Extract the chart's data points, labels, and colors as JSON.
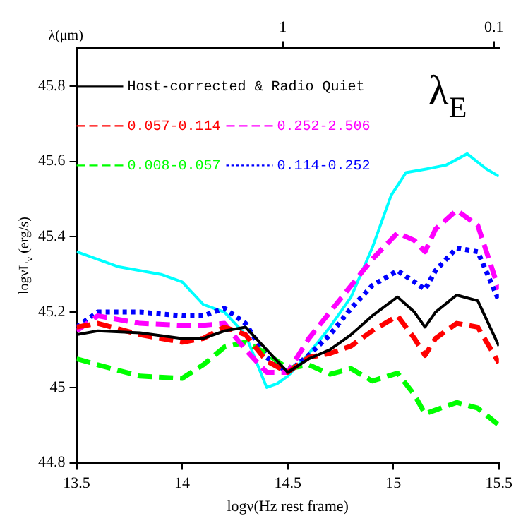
{
  "chart_data": {
    "type": "line",
    "xlabel": "logν(Hz rest frame)",
    "ylabel": "logνL$_{ν}$ (erg/s)",
    "x2label": "λ(μm)",
    "annotations": [
      "λ$_{E}$"
    ],
    "x": [
      13.5,
      13.6,
      13.8,
      14.0,
      14.1,
      14.2,
      14.3,
      14.4,
      14.5,
      14.6,
      14.7,
      14.8,
      14.9,
      15.02,
      15.1,
      15.15,
      15.2,
      15.3,
      15.4,
      15.5
    ],
    "xlim": [
      13.5,
      15.5
    ],
    "xticks": [
      13.5,
      14,
      14.5,
      15,
      15.5
    ],
    "x2lim": [
      9.48,
      0.0948
    ],
    "x2ticks": [
      1,
      0.1
    ],
    "log": "x2",
    "ylim": [
      44.8,
      45.9
    ],
    "yticks": [
      44.8,
      45,
      45.2,
      45.4,
      45.6,
      45.8
    ],
    "grid": false,
    "legend": "top left",
    "marker": "none",
    "series": [
      {
        "name": "Host-corrected & Radio Quiet",
        "color": "#000000",
        "line_style": "solid",
        "values": [
          45.14,
          45.15,
          45.145,
          45.13,
          45.13,
          45.15,
          45.16,
          45.1,
          45.04,
          45.076,
          45.1,
          45.14,
          45.19,
          45.24,
          45.2,
          45.16,
          45.2,
          45.245,
          45.23,
          45.11
        ]
      },
      {
        "name": "0.057-0.114",
        "color": "#ff0000",
        "line_style": "dashed",
        "values": [
          45.16,
          45.17,
          45.14,
          45.12,
          45.13,
          45.16,
          45.14,
          45.07,
          45.04,
          45.08,
          45.09,
          45.11,
          45.15,
          45.19,
          45.13,
          45.085,
          45.13,
          45.17,
          45.16,
          45.065
        ]
      },
      {
        "name": "0.252-2.506",
        "color": "#ff00ff",
        "line_style": "dashed",
        "values": [
          45.15,
          45.19,
          45.17,
          45.165,
          45.165,
          45.17,
          45.1,
          45.04,
          45.04,
          45.13,
          45.2,
          45.27,
          45.34,
          45.41,
          45.39,
          45.36,
          45.42,
          45.47,
          45.43,
          45.26
        ]
      },
      {
        "name": "0.008-0.057",
        "color": "#00ff00",
        "line_style": "dashed",
        "values": [
          45.076,
          45.06,
          45.03,
          45.024,
          45.06,
          45.107,
          45.12,
          45.09,
          45.05,
          45.06,
          45.035,
          45.05,
          45.017,
          45.038,
          44.98,
          44.93,
          44.94,
          44.96,
          44.945,
          44.9
        ]
      },
      {
        "name": "0.114-0.252",
        "color": "#0000ff",
        "line_style": "dotted",
        "values": [
          45.16,
          45.2,
          45.2,
          45.19,
          45.19,
          45.21,
          45.17,
          45.08,
          45.04,
          45.086,
          45.14,
          45.21,
          45.27,
          45.31,
          45.28,
          45.26,
          45.31,
          45.37,
          45.36,
          45.23
        ]
      },
      {
        "color": "#00ffff",
        "line_style": "solid",
        "x": [
          13.5,
          13.7,
          13.9,
          14.0,
          14.1,
          14.2,
          14.3,
          14.35,
          14.4,
          14.45,
          14.5,
          14.6,
          14.7,
          14.8,
          14.9,
          14.99,
          15.06,
          15.16,
          15.25,
          15.35,
          15.44,
          15.5
        ],
        "values": [
          45.36,
          45.32,
          45.3,
          45.28,
          45.22,
          45.2,
          45.14,
          45.07,
          45.0,
          45.01,
          45.03,
          45.09,
          45.16,
          45.24,
          45.37,
          45.51,
          45.57,
          45.58,
          45.59,
          45.62,
          45.58,
          45.56
        ]
      }
    ]
  }
}
